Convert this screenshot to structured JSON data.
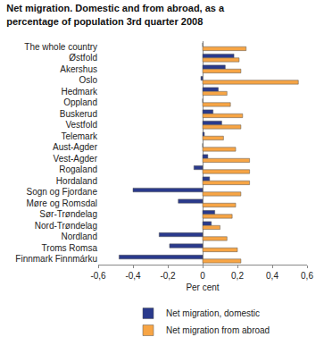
{
  "chart_data": {
    "type": "bar",
    "orientation": "horizontal",
    "title": "Net migration. Domestic and from abroad, as a percentage of population 3rd quarter 2008",
    "x_label": "Per cent",
    "categories": [
      "The whole country",
      "Østfold",
      "Akershus",
      "Oslo",
      "Hedmark",
      "Oppland",
      "Buskerud",
      "Vestfold",
      "Telemark",
      "Aust-Agder",
      "Vest-Agder",
      "Rogaland",
      "Hordaland",
      "Sogn og Fjordane",
      "Møre og Romsdal",
      "Sør-Trøndelag",
      "Nord-Trøndelag",
      "Nordland",
      "Troms Romsa",
      "Finnmark Finnmárku"
    ],
    "series": [
      {
        "name": "Net migration, domestic",
        "color": "#2a3a8c",
        "values": [
          0,
          0.18,
          0.13,
          -0.01,
          0.09,
          0,
          0.06,
          0.11,
          0.01,
          0,
          0.03,
          -0.05,
          0.04,
          -0.4,
          -0.14,
          0.07,
          0.05,
          -0.25,
          -0.19,
          -0.48
        ]
      },
      {
        "name": "Net migration from abroad",
        "color": "#f7a545",
        "values": [
          0.25,
          0.21,
          0.22,
          0.55,
          0.14,
          0.16,
          0.23,
          0.22,
          0.12,
          0.19,
          0.27,
          0.27,
          0.27,
          0.22,
          0.19,
          0.17,
          0.1,
          0.14,
          0.2,
          0.22
        ]
      }
    ],
    "xlim": [
      -0.6,
      0.6
    ],
    "xticks": [
      {
        "value": -0.6,
        "label": "-0,6"
      },
      {
        "value": -0.4,
        "label": "-0,4"
      },
      {
        "value": -0.2,
        "label": "-0,2"
      },
      0,
      {
        "value": 0.2,
        "label": "0,2"
      },
      {
        "value": 0.4,
        "label": "0,4"
      },
      {
        "value": 0.6,
        "label": "0,6"
      }
    ],
    "grid": false,
    "legend": "bottom"
  }
}
